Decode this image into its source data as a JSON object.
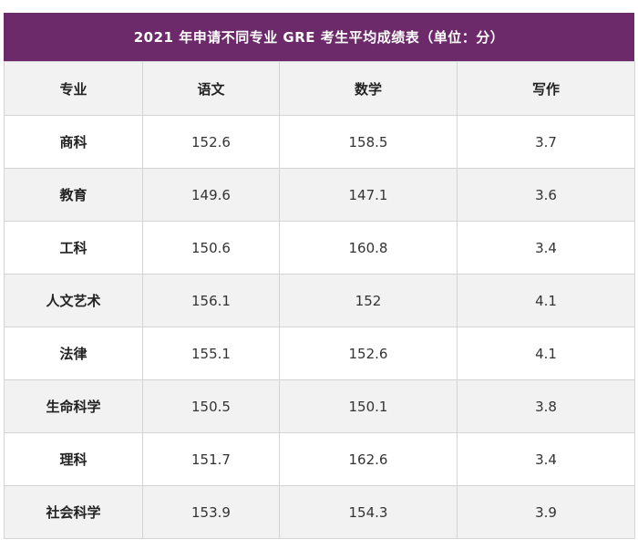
{
  "table": {
    "title": "2021 年申请不同专业 GRE 考生平均成绩表（单位：分）",
    "headers": [
      "专业",
      "语文",
      "数学",
      "写作"
    ],
    "rows": [
      [
        "商科",
        "152.6",
        "158.5",
        "3.7"
      ],
      [
        "教育",
        "149.6",
        "147.1",
        "3.6"
      ],
      [
        "工科",
        "150.6",
        "160.8",
        "3.4"
      ],
      [
        "人文艺术",
        "156.1",
        "152",
        "4.1"
      ],
      [
        "法律",
        "155.1",
        "152.6",
        "4.1"
      ],
      [
        "生命科学",
        "150.5",
        "150.1",
        "3.8"
      ],
      [
        "理科",
        "151.7",
        "162.6",
        "3.4"
      ],
      [
        "社会科学",
        "153.9",
        "154.3",
        "3.9"
      ]
    ],
    "colors": {
      "title_bg": "#6d2a6b",
      "title_text": "#ffffff",
      "shaded_row": "#f2f2f2",
      "border": "#d4d4d4"
    }
  }
}
